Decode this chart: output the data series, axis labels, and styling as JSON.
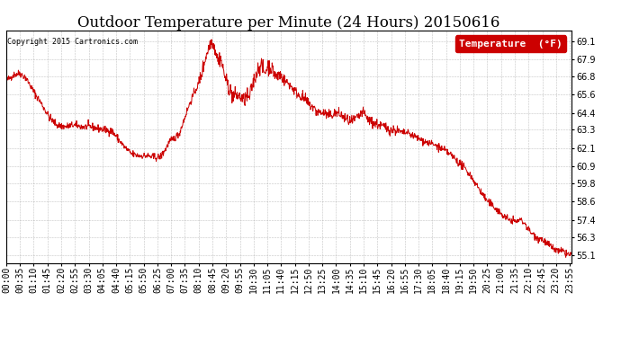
{
  "title": "Outdoor Temperature per Minute (24 Hours) 20150616",
  "copyright_text": "Copyright 2015 Cartronics.com",
  "legend_label": "Temperature  (°F)",
  "line_color": "#cc0000",
  "background_color": "#ffffff",
  "plot_bg_color": "#ffffff",
  "grid_color": "#999999",
  "yticks": [
    55.1,
    56.3,
    57.4,
    58.6,
    59.8,
    60.9,
    62.1,
    63.3,
    64.4,
    65.6,
    66.8,
    67.9,
    69.1
  ],
  "ylim": [
    54.6,
    69.8
  ],
  "keypoints": [
    [
      0,
      66.5
    ],
    [
      20,
      66.9
    ],
    [
      35,
      67.0
    ],
    [
      50,
      66.7
    ],
    [
      70,
      65.8
    ],
    [
      90,
      65.0
    ],
    [
      110,
      64.1
    ],
    [
      130,
      63.6
    ],
    [
      150,
      63.5
    ],
    [
      170,
      63.6
    ],
    [
      195,
      63.5
    ],
    [
      215,
      63.5
    ],
    [
      230,
      63.4
    ],
    [
      250,
      63.3
    ],
    [
      270,
      63.2
    ],
    [
      300,
      62.2
    ],
    [
      320,
      61.7
    ],
    [
      340,
      61.6
    ],
    [
      360,
      61.6
    ],
    [
      375,
      61.5
    ],
    [
      390,
      61.5
    ],
    [
      395,
      61.6
    ],
    [
      405,
      62.0
    ],
    [
      415,
      62.5
    ],
    [
      440,
      63.0
    ],
    [
      460,
      64.5
    ],
    [
      475,
      65.5
    ],
    [
      490,
      66.3
    ],
    [
      500,
      67.2
    ],
    [
      505,
      67.8
    ],
    [
      512,
      68.4
    ],
    [
      520,
      69.0
    ],
    [
      525,
      69.1
    ],
    [
      530,
      68.7
    ],
    [
      535,
      68.3
    ],
    [
      540,
      67.8
    ],
    [
      545,
      68.1
    ],
    [
      550,
      67.5
    ],
    [
      555,
      67.0
    ],
    [
      560,
      66.5
    ],
    [
      565,
      66.2
    ],
    [
      570,
      65.9
    ],
    [
      575,
      65.6
    ],
    [
      580,
      65.5
    ],
    [
      585,
      65.6
    ],
    [
      590,
      65.5
    ],
    [
      600,
      65.4
    ],
    [
      605,
      65.2
    ],
    [
      612,
      65.5
    ],
    [
      618,
      65.3
    ],
    [
      625,
      66.0
    ],
    [
      630,
      66.5
    ],
    [
      635,
      66.8
    ],
    [
      640,
      67.2
    ],
    [
      645,
      67.5
    ],
    [
      650,
      67.5
    ],
    [
      658,
      67.0
    ],
    [
      665,
      67.4
    ],
    [
      670,
      67.5
    ],
    [
      678,
      67.2
    ],
    [
      685,
      66.9
    ],
    [
      690,
      66.7
    ],
    [
      695,
      67.0
    ],
    [
      700,
      66.8
    ],
    [
      710,
      66.5
    ],
    [
      720,
      66.3
    ],
    [
      730,
      66.0
    ],
    [
      740,
      65.7
    ],
    [
      750,
      65.5
    ],
    [
      760,
      65.3
    ],
    [
      770,
      65.0
    ],
    [
      780,
      64.8
    ],
    [
      790,
      64.5
    ],
    [
      800,
      64.4
    ],
    [
      810,
      64.4
    ],
    [
      820,
      64.2
    ],
    [
      830,
      64.3
    ],
    [
      840,
      64.4
    ],
    [
      850,
      64.3
    ],
    [
      860,
      64.1
    ],
    [
      870,
      63.9
    ],
    [
      880,
      63.8
    ],
    [
      890,
      64.0
    ],
    [
      900,
      64.2
    ],
    [
      905,
      64.4
    ],
    [
      910,
      64.4
    ],
    [
      915,
      64.2
    ],
    [
      920,
      64.0
    ],
    [
      930,
      63.8
    ],
    [
      940,
      63.7
    ],
    [
      950,
      63.6
    ],
    [
      960,
      63.5
    ],
    [
      970,
      63.4
    ],
    [
      980,
      63.3
    ],
    [
      990,
      63.3
    ],
    [
      1000,
      63.2
    ],
    [
      1010,
      63.1
    ],
    [
      1020,
      63.1
    ],
    [
      1030,
      63.0
    ],
    [
      1045,
      62.8
    ],
    [
      1060,
      62.6
    ],
    [
      1070,
      62.5
    ],
    [
      1080,
      62.4
    ],
    [
      1090,
      62.3
    ],
    [
      1100,
      62.2
    ],
    [
      1110,
      62.0
    ],
    [
      1120,
      61.9
    ],
    [
      1130,
      61.7
    ],
    [
      1140,
      61.5
    ],
    [
      1150,
      61.2
    ],
    [
      1160,
      61.0
    ],
    [
      1170,
      60.7
    ],
    [
      1180,
      60.4
    ],
    [
      1190,
      60.0
    ],
    [
      1200,
      59.6
    ],
    [
      1210,
      59.2
    ],
    [
      1220,
      58.8
    ],
    [
      1230,
      58.5
    ],
    [
      1240,
      58.3
    ],
    [
      1250,
      58.1
    ],
    [
      1260,
      57.8
    ],
    [
      1270,
      57.6
    ],
    [
      1280,
      57.4
    ],
    [
      1285,
      57.4
    ],
    [
      1290,
      57.4
    ],
    [
      1295,
      57.3
    ],
    [
      1300,
      57.3
    ],
    [
      1305,
      57.4
    ],
    [
      1310,
      57.4
    ],
    [
      1315,
      57.3
    ],
    [
      1320,
      57.2
    ],
    [
      1325,
      57.0
    ],
    [
      1330,
      56.8
    ],
    [
      1335,
      56.6
    ],
    [
      1340,
      56.5
    ],
    [
      1345,
      56.4
    ],
    [
      1350,
      56.3
    ],
    [
      1355,
      56.2
    ],
    [
      1360,
      56.2
    ],
    [
      1365,
      56.1
    ],
    [
      1370,
      56.0
    ],
    [
      1375,
      55.9
    ],
    [
      1380,
      55.8
    ],
    [
      1385,
      55.7
    ],
    [
      1390,
      55.6
    ],
    [
      1395,
      55.5
    ],
    [
      1400,
      55.4
    ],
    [
      1405,
      55.4
    ],
    [
      1410,
      55.3
    ],
    [
      1415,
      55.4
    ],
    [
      1420,
      55.3
    ],
    [
      1425,
      55.2
    ],
    [
      1430,
      55.2
    ],
    [
      1435,
      55.1
    ],
    [
      1439,
      55.1
    ]
  ],
  "title_fontsize": 12,
  "legend_fontsize": 8,
  "tick_fontsize": 7
}
